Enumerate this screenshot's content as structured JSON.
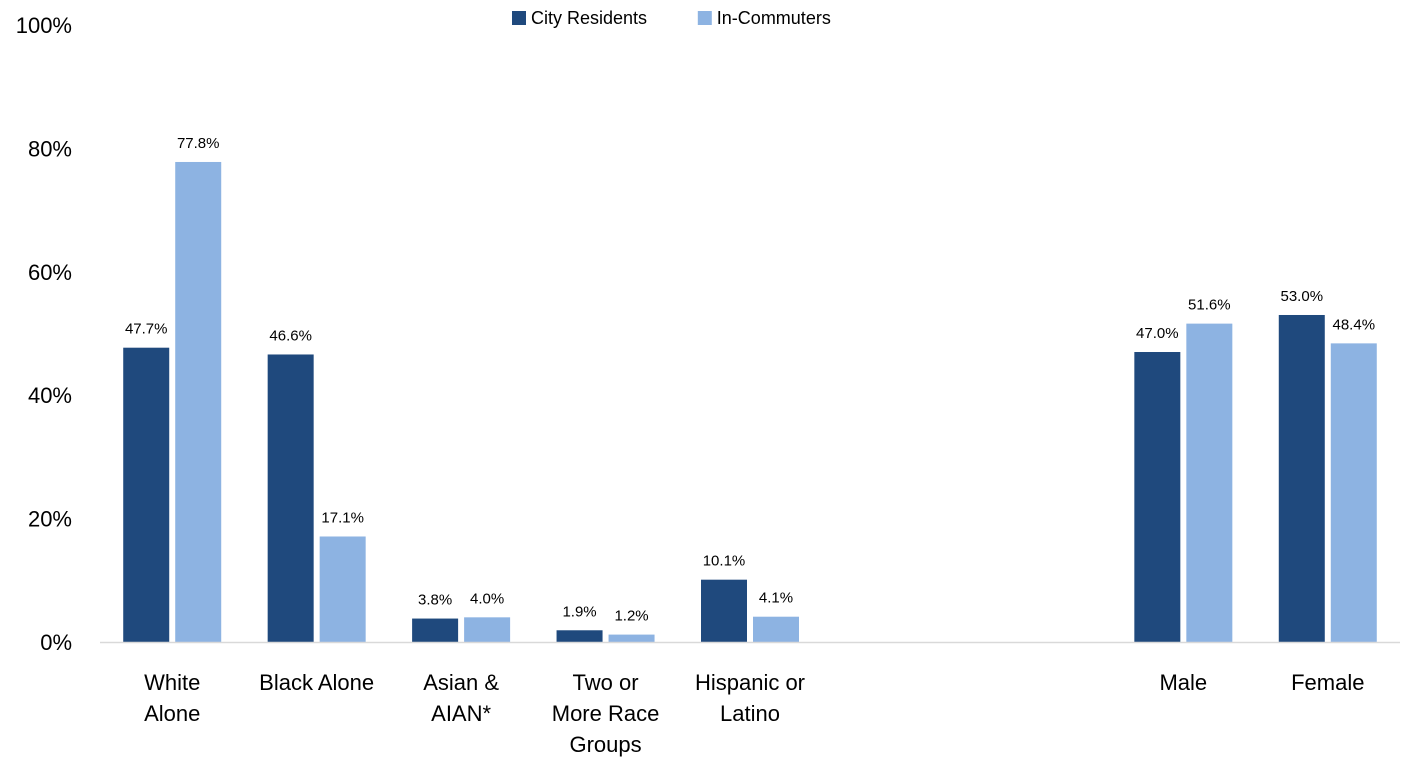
{
  "chart_data": {
    "type": "bar",
    "title": "",
    "xlabel": "",
    "ylabel": "",
    "ylim": [
      0,
      100
    ],
    "grid": false,
    "legend_position": "top-center",
    "y_ticks": [
      "0%",
      "20%",
      "40%",
      "60%",
      "80%",
      "100%"
    ],
    "y_tick_values": [
      0,
      20,
      40,
      60,
      80,
      100
    ],
    "categories": [
      [
        "White",
        "Alone"
      ],
      [
        "Black Alone"
      ],
      [
        "Asian &",
        "AIAN*"
      ],
      [
        "Two or",
        "More Race",
        "Groups"
      ],
      [
        "Hispanic or",
        "Latino"
      ],
      [
        ""
      ],
      [
        ""
      ],
      [
        "Male"
      ],
      [
        "Female"
      ]
    ],
    "series": [
      {
        "name": "City Residents",
        "color": "#1f497d",
        "values": [
          47.7,
          46.6,
          3.8,
          1.9,
          10.1,
          null,
          null,
          47.0,
          53.0
        ],
        "labels": [
          "47.7%",
          "46.6%",
          "3.8%",
          "1.9%",
          "10.1%",
          null,
          null,
          "47.0%",
          "53.0%"
        ]
      },
      {
        "name": "In-Commuters",
        "color": "#8db3e2",
        "values": [
          77.8,
          17.1,
          4.0,
          1.2,
          4.1,
          null,
          null,
          51.6,
          48.4
        ],
        "labels": [
          "77.8%",
          "17.1%",
          "4.0%",
          "1.2%",
          "4.1%",
          null,
          null,
          "51.6%",
          "48.4%"
        ]
      }
    ]
  }
}
